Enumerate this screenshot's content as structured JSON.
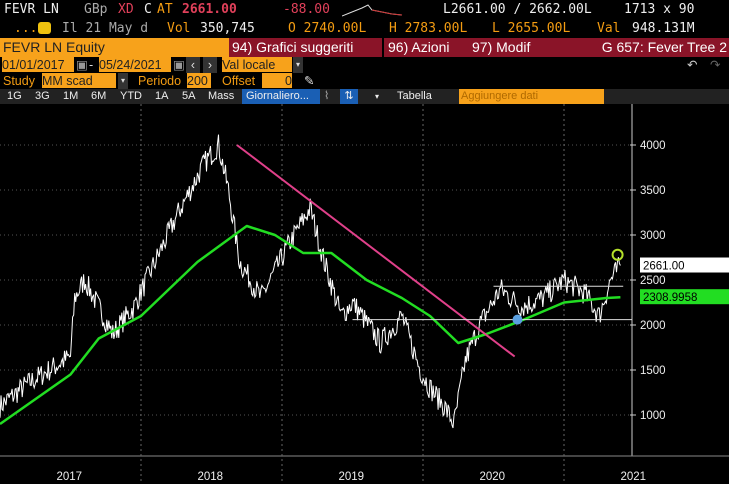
{
  "quote": {
    "ticker": "FEVR LN",
    "currency": "GBp",
    "xd": "XD",
    "c": "C",
    "at": "AT",
    "last": "2661.00",
    "change": "-88.00",
    "bid_ask": "L2661.00 / 2662.00L",
    "size": "1713 x 90",
    "date": "Il 21 May d",
    "vol_label": "Vol",
    "volume": "350,745",
    "open": "O 2740.00L",
    "high": "H 2783.00L",
    "low": "L 2655.00L",
    "val_label": "Val",
    "value": "948.131M"
  },
  "toolbar": {
    "security": "FEVR LN Equity",
    "menu1": "94) Grafici suggeriti",
    "menu2": "96) Azioni",
    "menu3": "97) Modif",
    "title": "G 657: Fever Tree 2"
  },
  "dates": {
    "start": "01/01/2017",
    "end": "05/24/2021",
    "currency": "Val locale"
  },
  "study": {
    "label": "Study",
    "type": "MM scad",
    "period_label": "Periodo",
    "period": "200",
    "offset_label": "Offset",
    "offset": "0"
  },
  "periods": [
    "1G",
    "3G",
    "1M",
    "6M",
    "YTD",
    "1A",
    "5A",
    "Mass"
  ],
  "frequency": "Giornaliero...",
  "table_label": "Tabella",
  "add_data": "Aggiungere dati",
  "colors": {
    "price": "#ffffff",
    "ma": "#22dd22",
    "trend": "#e0408a",
    "accent": "#f7a21b"
  },
  "chart_data": {
    "type": "line",
    "x_unit": "year",
    "ylim": [
      800,
      4300
    ],
    "yticks": [
      "4000",
      "3500",
      "3000",
      "2500",
      "2000",
      "1500",
      "1000"
    ],
    "xticks": [
      "2017",
      "2018",
      "2019",
      "2020",
      "2021"
    ],
    "series": [
      {
        "name": "FEVR LN price",
        "x": [
          2017.0,
          2017.2,
          2017.5,
          2017.53,
          2017.6,
          2017.8,
          2017.95,
          2018.1,
          2018.25,
          2018.35,
          2018.45,
          2018.55,
          2018.62,
          2018.7,
          2018.85,
          2018.95,
          2019.05,
          2019.2,
          2019.3,
          2019.42,
          2019.5,
          2019.7,
          2019.85,
          2019.98,
          2020.05,
          2020.15,
          2020.22,
          2020.3,
          2020.4,
          2020.55,
          2020.7,
          2020.85,
          2021.0,
          2021.15,
          2021.25,
          2021.33,
          2021.4
        ],
        "values": [
          1100,
          1350,
          1650,
          2300,
          2500,
          1900,
          2200,
          2700,
          3200,
          3500,
          3800,
          4000,
          3500,
          2700,
          2300,
          2600,
          2900,
          3300,
          2700,
          2100,
          2250,
          1800,
          2100,
          1500,
          1300,
          1100,
          900,
          1600,
          2000,
          2400,
          2200,
          2300,
          2500,
          2350,
          2100,
          2500,
          2661
        ]
      },
      {
        "name": "MM scad 200",
        "x": [
          2017.0,
          2017.5,
          2017.7,
          2018.0,
          2018.4,
          2018.75,
          2018.95,
          2019.15,
          2019.35,
          2019.6,
          2019.85,
          2020.05,
          2020.25,
          2020.45,
          2020.7,
          2021.0,
          2021.3,
          2021.4
        ],
        "values": [
          900,
          1450,
          1850,
          2100,
          2700,
          3100,
          3000,
          2800,
          2800,
          2500,
          2300,
          2100,
          1800,
          1900,
          2050,
          2250,
          2300,
          2309
        ]
      }
    ],
    "last_price_label": "2661.00",
    "ma_label": "2308.9958"
  }
}
